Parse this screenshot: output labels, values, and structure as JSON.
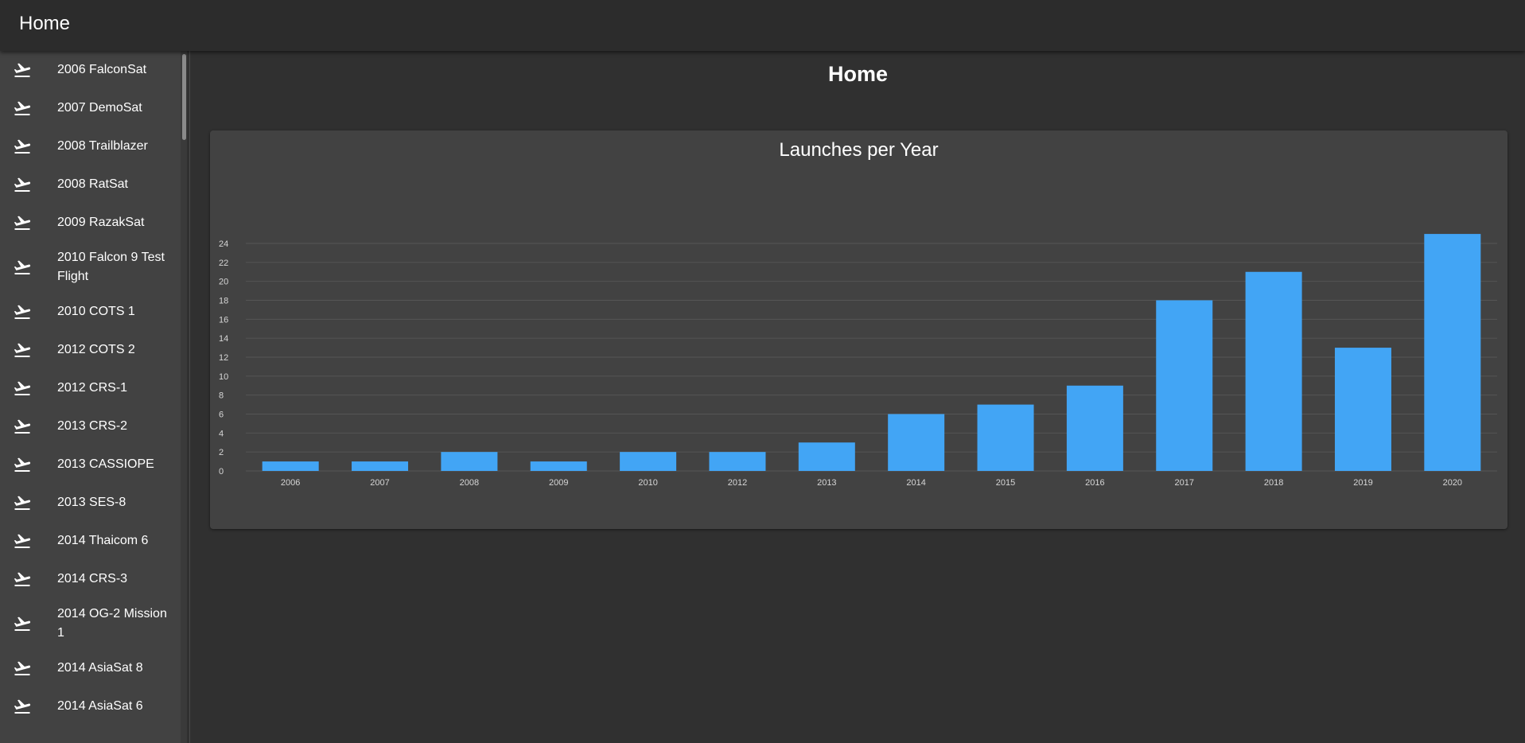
{
  "appbar": {
    "title": "Home"
  },
  "sidebar": {
    "items": [
      {
        "label": "2006 FalconSat",
        "icon": "flight-takeoff-icon"
      },
      {
        "label": "2007 DemoSat",
        "icon": "flight-takeoff-icon"
      },
      {
        "label": "2008 Trailblazer",
        "icon": "flight-takeoff-icon"
      },
      {
        "label": "2008 RatSat",
        "icon": "flight-takeoff-icon"
      },
      {
        "label": "2009 RazakSat",
        "icon": "flight-takeoff-icon"
      },
      {
        "label": "2010 Falcon 9 Test Flight",
        "icon": "flight-takeoff-icon"
      },
      {
        "label": "2010 COTS 1",
        "icon": "flight-takeoff-icon"
      },
      {
        "label": "2012 COTS 2",
        "icon": "flight-takeoff-icon"
      },
      {
        "label": "2012 CRS-1",
        "icon": "flight-takeoff-icon"
      },
      {
        "label": "2013 CRS-2",
        "icon": "flight-takeoff-icon"
      },
      {
        "label": "2013 CASSIOPE",
        "icon": "flight-takeoff-icon"
      },
      {
        "label": "2013 SES-8",
        "icon": "flight-takeoff-icon"
      },
      {
        "label": "2014 Thaicom 6",
        "icon": "flight-takeoff-icon"
      },
      {
        "label": "2014 CRS-3",
        "icon": "flight-takeoff-icon"
      },
      {
        "label": "2014 OG-2 Mission 1",
        "icon": "flight-takeoff-icon"
      },
      {
        "label": "2014 AsiaSat 8",
        "icon": "flight-takeoff-icon"
      },
      {
        "label": "2014 AsiaSat 6",
        "icon": "flight-takeoff-icon"
      }
    ]
  },
  "main": {
    "page_title": "Home"
  },
  "colors": {
    "bar": "#42a5f5",
    "background": "#303030",
    "card": "#424242",
    "grid": "#555555"
  },
  "chart_data": {
    "type": "bar",
    "title": "Launches per Year",
    "xlabel": "",
    "ylabel": "",
    "categories": [
      "2006",
      "2007",
      "2008",
      "2009",
      "2010",
      "2012",
      "2013",
      "2014",
      "2015",
      "2016",
      "2017",
      "2018",
      "2019",
      "2020"
    ],
    "values": [
      1,
      1,
      2,
      1,
      2,
      2,
      3,
      6,
      7,
      9,
      18,
      21,
      13,
      25
    ],
    "ylim": [
      0,
      24
    ],
    "yticks": [
      0,
      2,
      4,
      6,
      8,
      10,
      12,
      14,
      16,
      18,
      20,
      22,
      24
    ],
    "grid": true,
    "legend": "none"
  }
}
